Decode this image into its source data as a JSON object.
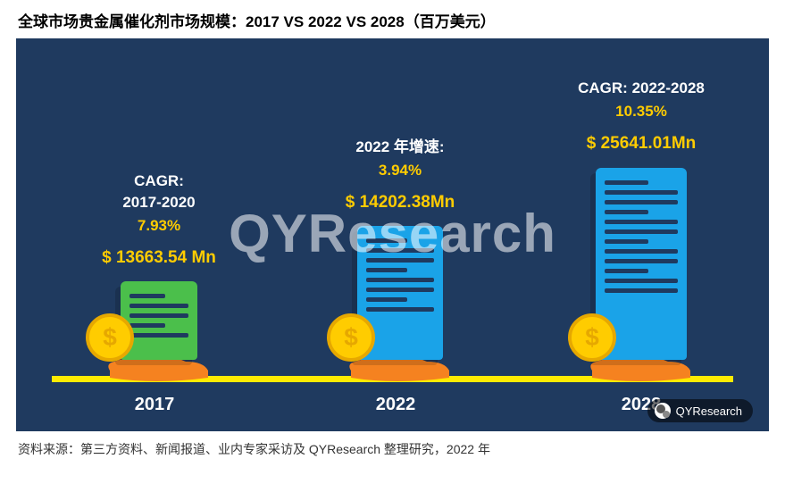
{
  "title": "全球市场贵金属催化剂市场规模：2017 VS 2022 VS 2028（百万美元）",
  "chart": {
    "type": "infographic-bar",
    "background_color": "#1f3a5f",
    "axis_color": "#ffeb00",
    "watermark": "QYResearch",
    "text_white": "#ffffff",
    "text_yellow": "#ffcc00",
    "columns": [
      {
        "year": "2017",
        "cagr_label_1": "CAGR:",
        "cagr_label_2": "2017-2020",
        "cagr_value": "7.93%",
        "value_label": "$ 13663.54 Mn",
        "doc_color": "#4bbf4b",
        "doc_height": 88,
        "doc_width": 86,
        "doc_lines": 5
      },
      {
        "year": "2022",
        "cagr_label_1": "2022 年增速:",
        "cagr_label_2": "",
        "cagr_value": "3.94%",
        "value_label": "$ 14202.38Mn",
        "doc_color": "#1aa3e8",
        "doc_height": 150,
        "doc_width": 96,
        "doc_lines": 8
      },
      {
        "year": "2028",
        "cagr_label_1": "CAGR: 2022-2028",
        "cagr_label_2": "",
        "cagr_value": "10.35%",
        "value_label": "$ 25641.01Mn",
        "doc_color": "#1aa3e8",
        "doc_height": 215,
        "doc_width": 102,
        "doc_lines": 12
      }
    ],
    "coin_color": "#ffcc00",
    "coin_border": "#e6a800",
    "hand_color": "#f58220"
  },
  "source": "资料来源：第三方资料、新闻报道、业内专家采访及 QYResearch 整理研究，2022 年",
  "badge": "QYResearch"
}
